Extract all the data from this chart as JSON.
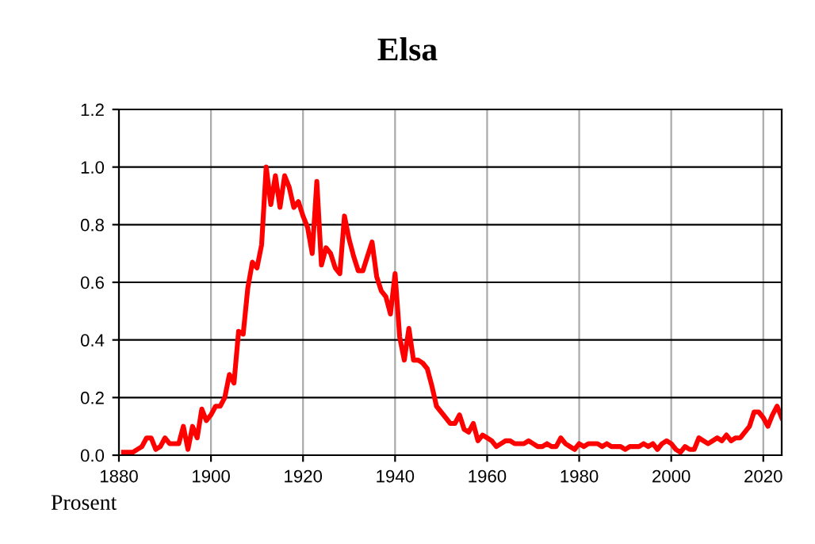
{
  "chart_data": {
    "type": "line",
    "title": "Elsa",
    "annotations": [
      "Prosent"
    ],
    "x": [
      1881,
      1882,
      1883,
      1884,
      1885,
      1886,
      1887,
      1888,
      1889,
      1890,
      1891,
      1892,
      1893,
      1894,
      1895,
      1896,
      1897,
      1898,
      1899,
      1900,
      1901,
      1902,
      1903,
      1904,
      1905,
      1906,
      1907,
      1908,
      1909,
      1910,
      1911,
      1912,
      1913,
      1914,
      1915,
      1916,
      1917,
      1918,
      1919,
      1920,
      1921,
      1922,
      1923,
      1924,
      1925,
      1926,
      1927,
      1928,
      1929,
      1930,
      1931,
      1932,
      1933,
      1934,
      1935,
      1936,
      1937,
      1938,
      1939,
      1940,
      1941,
      1942,
      1943,
      1944,
      1945,
      1946,
      1947,
      1948,
      1949,
      1950,
      1951,
      1952,
      1953,
      1954,
      1955,
      1956,
      1957,
      1958,
      1959,
      1960,
      1961,
      1962,
      1963,
      1964,
      1965,
      1966,
      1967,
      1968,
      1969,
      1970,
      1971,
      1972,
      1973,
      1974,
      1975,
      1976,
      1977,
      1978,
      1979,
      1980,
      1981,
      1982,
      1983,
      1984,
      1985,
      1986,
      1987,
      1988,
      1989,
      1990,
      1991,
      1992,
      1993,
      1994,
      1995,
      1996,
      1997,
      1998,
      1999,
      2000,
      2001,
      2002,
      2003,
      2004,
      2005,
      2006,
      2007,
      2008,
      2009,
      2010,
      2011,
      2012,
      2013,
      2014,
      2015,
      2016,
      2017,
      2018,
      2019,
      2020,
      2021,
      2022,
      2023,
      2024
    ],
    "series": [
      {
        "color": "#ff0000",
        "values": [
          0.01,
          0.01,
          0.01,
          0.02,
          0.03,
          0.06,
          0.06,
          0.02,
          0.03,
          0.06,
          0.04,
          0.04,
          0.04,
          0.1,
          0.02,
          0.1,
          0.06,
          0.16,
          0.12,
          0.14,
          0.17,
          0.17,
          0.2,
          0.28,
          0.25,
          0.43,
          0.42,
          0.58,
          0.67,
          0.65,
          0.73,
          1.0,
          0.87,
          0.97,
          0.86,
          0.97,
          0.93,
          0.86,
          0.88,
          0.83,
          0.79,
          0.7,
          0.95,
          0.66,
          0.72,
          0.7,
          0.65,
          0.63,
          0.83,
          0.75,
          0.69,
          0.64,
          0.64,
          0.69,
          0.74,
          0.62,
          0.57,
          0.55,
          0.49,
          0.63,
          0.41,
          0.33,
          0.44,
          0.33,
          0.33,
          0.32,
          0.3,
          0.24,
          0.17,
          0.15,
          0.13,
          0.11,
          0.11,
          0.14,
          0.09,
          0.08,
          0.11,
          0.05,
          0.07,
          0.06,
          0.05,
          0.03,
          0.04,
          0.05,
          0.05,
          0.04,
          0.04,
          0.04,
          0.05,
          0.04,
          0.03,
          0.03,
          0.04,
          0.03,
          0.03,
          0.06,
          0.04,
          0.03,
          0.02,
          0.04,
          0.03,
          0.04,
          0.04,
          0.04,
          0.03,
          0.04,
          0.03,
          0.03,
          0.03,
          0.02,
          0.03,
          0.03,
          0.03,
          0.04,
          0.03,
          0.04,
          0.02,
          0.04,
          0.05,
          0.04,
          0.02,
          0.01,
          0.03,
          0.02,
          0.02,
          0.06,
          0.05,
          0.04,
          0.05,
          0.06,
          0.05,
          0.07,
          0.05,
          0.06,
          0.06,
          0.08,
          0.1,
          0.15,
          0.15,
          0.13,
          0.1,
          0.14,
          0.17,
          0.13
        ]
      }
    ],
    "xlim": [
      1880,
      2024
    ],
    "ylim": [
      0,
      1.2
    ],
    "xticks": [
      1880,
      1900,
      1920,
      1940,
      1960,
      1980,
      2000,
      2020
    ],
    "yticks": [
      {
        "value": 0,
        "label": "0.0"
      },
      {
        "value": 0.2,
        "label": "0.2"
      },
      {
        "value": 0.4,
        "label": "0.4"
      },
      {
        "value": 0.6,
        "label": "0.6"
      },
      {
        "value": 0.8,
        "label": "0.8"
      },
      {
        "value": 1.0,
        "label": "1.0"
      },
      {
        "value": 1.2,
        "label": "1.2"
      }
    ],
    "grid": true,
    "marker": "none",
    "line_style": "solid",
    "legend": false
  }
}
